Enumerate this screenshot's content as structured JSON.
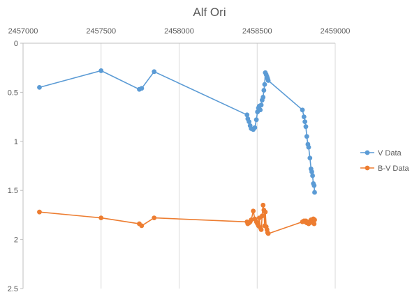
{
  "chart_data": {
    "type": "line",
    "title": "Alf Ori",
    "xlabel": "",
    "ylabel": "",
    "x_axis_position": "top",
    "y_axis_reversed": true,
    "xlim": [
      2457000,
      2459000
    ],
    "ylim": [
      0,
      2.5
    ],
    "x_ticks": [
      "2457000",
      "2457500",
      "2458000",
      "2458500",
      "2459000"
    ],
    "y_ticks": [
      "0",
      "0.5",
      "1",
      "1.5",
      "2",
      "2.5"
    ],
    "grid": "vertical-only",
    "legend_position": "right",
    "series": [
      {
        "name": "V Data",
        "color": "#5b9bd5",
        "points": [
          [
            2457105,
            0.45
          ],
          [
            2457500,
            0.28
          ],
          [
            2457745,
            0.47
          ],
          [
            2457760,
            0.46
          ],
          [
            2457840,
            0.29
          ],
          [
            2458435,
            0.73
          ],
          [
            2458440,
            0.77
          ],
          [
            2458448,
            0.8
          ],
          [
            2458455,
            0.84
          ],
          [
            2458462,
            0.87
          ],
          [
            2458475,
            0.88
          ],
          [
            2458485,
            0.86
          ],
          [
            2458495,
            0.78
          ],
          [
            2458502,
            0.7
          ],
          [
            2458508,
            0.66
          ],
          [
            2458514,
            0.64
          ],
          [
            2458520,
            0.68
          ],
          [
            2458526,
            0.63
          ],
          [
            2458532,
            0.58
          ],
          [
            2458538,
            0.55
          ],
          [
            2458543,
            0.48
          ],
          [
            2458548,
            0.42
          ],
          [
            2458552,
            0.3
          ],
          [
            2458558,
            0.32
          ],
          [
            2458563,
            0.34
          ],
          [
            2458567,
            0.36
          ],
          [
            2458571,
            0.38
          ],
          [
            2458790,
            0.68
          ],
          [
            2458800,
            0.75
          ],
          [
            2458806,
            0.8
          ],
          [
            2458812,
            0.85
          ],
          [
            2458818,
            0.95
          ],
          [
            2458825,
            1.03
          ],
          [
            2458830,
            1.06
          ],
          [
            2458838,
            1.17
          ],
          [
            2458845,
            1.28
          ],
          [
            2458850,
            1.31
          ],
          [
            2458855,
            1.35
          ],
          [
            2458860,
            1.43
          ],
          [
            2458865,
            1.45
          ],
          [
            2458868,
            1.52
          ]
        ]
      },
      {
        "name": "B-V Data",
        "color": "#ed7d31",
        "points": [
          [
            2457105,
            1.72
          ],
          [
            2457500,
            1.78
          ],
          [
            2457745,
            1.84
          ],
          [
            2457760,
            1.86
          ],
          [
            2457840,
            1.78
          ],
          [
            2458435,
            1.82
          ],
          [
            2458440,
            1.84
          ],
          [
            2458448,
            1.83
          ],
          [
            2458455,
            1.82
          ],
          [
            2458462,
            1.8
          ],
          [
            2458475,
            1.71
          ],
          [
            2458485,
            1.79
          ],
          [
            2458495,
            1.82
          ],
          [
            2458502,
            1.84
          ],
          [
            2458508,
            1.86
          ],
          [
            2458514,
            1.78
          ],
          [
            2458520,
            1.88
          ],
          [
            2458526,
            1.9
          ],
          [
            2458532,
            1.76
          ],
          [
            2458538,
            1.65
          ],
          [
            2458543,
            1.7
          ],
          [
            2458548,
            1.86
          ],
          [
            2458552,
            1.72
          ],
          [
            2458558,
            1.87
          ],
          [
            2458563,
            1.9
          ],
          [
            2458567,
            1.93
          ],
          [
            2458571,
            1.94
          ],
          [
            2458790,
            1.82
          ],
          [
            2458800,
            1.81
          ],
          [
            2458806,
            1.82
          ],
          [
            2458812,
            1.81
          ],
          [
            2458818,
            1.83
          ],
          [
            2458825,
            1.82
          ],
          [
            2458830,
            1.84
          ],
          [
            2458838,
            1.83
          ],
          [
            2458845,
            1.8
          ],
          [
            2458850,
            1.82
          ],
          [
            2458855,
            1.81
          ],
          [
            2458860,
            1.79
          ],
          [
            2458865,
            1.84
          ],
          [
            2458868,
            1.8
          ]
        ]
      }
    ]
  }
}
